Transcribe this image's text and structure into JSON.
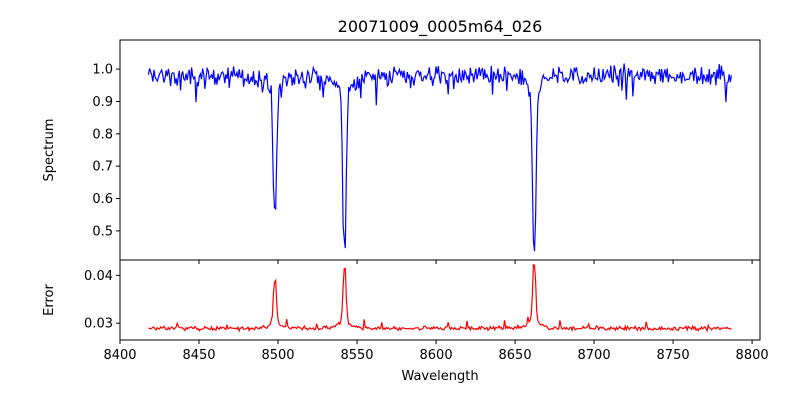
{
  "chart_data": [
    {
      "type": "line",
      "title": "20071009_0005m64_026",
      "ylabel": "Spectrum",
      "xlabel": "",
      "xlim": [
        8400,
        8805
      ],
      "ylim": [
        0.41,
        1.09
      ],
      "xticks": [
        8400,
        8450,
        8500,
        8550,
        8600,
        8650,
        8700,
        8750,
        8800
      ],
      "xtick_labels_shown": false,
      "yticks": [
        0.5,
        0.6,
        0.7,
        0.8,
        0.9,
        1.0
      ],
      "ytick_labels": [
        "0.5",
        "0.6",
        "0.7",
        "0.8",
        "0.9",
        "1.0"
      ],
      "series": [
        {
          "color": "#0000ff",
          "x_range": [
            8418,
            8787
          ],
          "continuum": 0.98,
          "noise": 0.025,
          "absorption_lines": [
            {
              "center": 8498.0,
              "min_value": 0.57
            },
            {
              "center": 8542.1,
              "min_value": 0.45
            },
            {
              "center": 8662.1,
              "min_value": 0.45
            }
          ]
        }
      ]
    },
    {
      "type": "line",
      "title": "",
      "ylabel": "Error",
      "xlabel": "Wavelength",
      "xlim": [
        8400,
        8805
      ],
      "ylim": [
        0.0265,
        0.0432
      ],
      "xticks": [
        8400,
        8450,
        8500,
        8550,
        8600,
        8650,
        8700,
        8750,
        8800
      ],
      "xtick_labels": [
        "8400",
        "8450",
        "8500",
        "8550",
        "8600",
        "8650",
        "8700",
        "8750",
        "8800"
      ],
      "yticks": [
        0.03,
        0.04
      ],
      "ytick_labels": [
        "0.03",
        "0.04"
      ],
      "series": [
        {
          "color": "#ff0000",
          "x_range": [
            8418,
            8787
          ],
          "baseline": 0.0289,
          "noise": 0.0006,
          "emission_peaks": [
            {
              "center": 8498.0,
              "max_value": 0.0385
            },
            {
              "center": 8542.1,
              "max_value": 0.0412
            },
            {
              "center": 8662.1,
              "max_value": 0.0425
            }
          ]
        }
      ]
    }
  ]
}
